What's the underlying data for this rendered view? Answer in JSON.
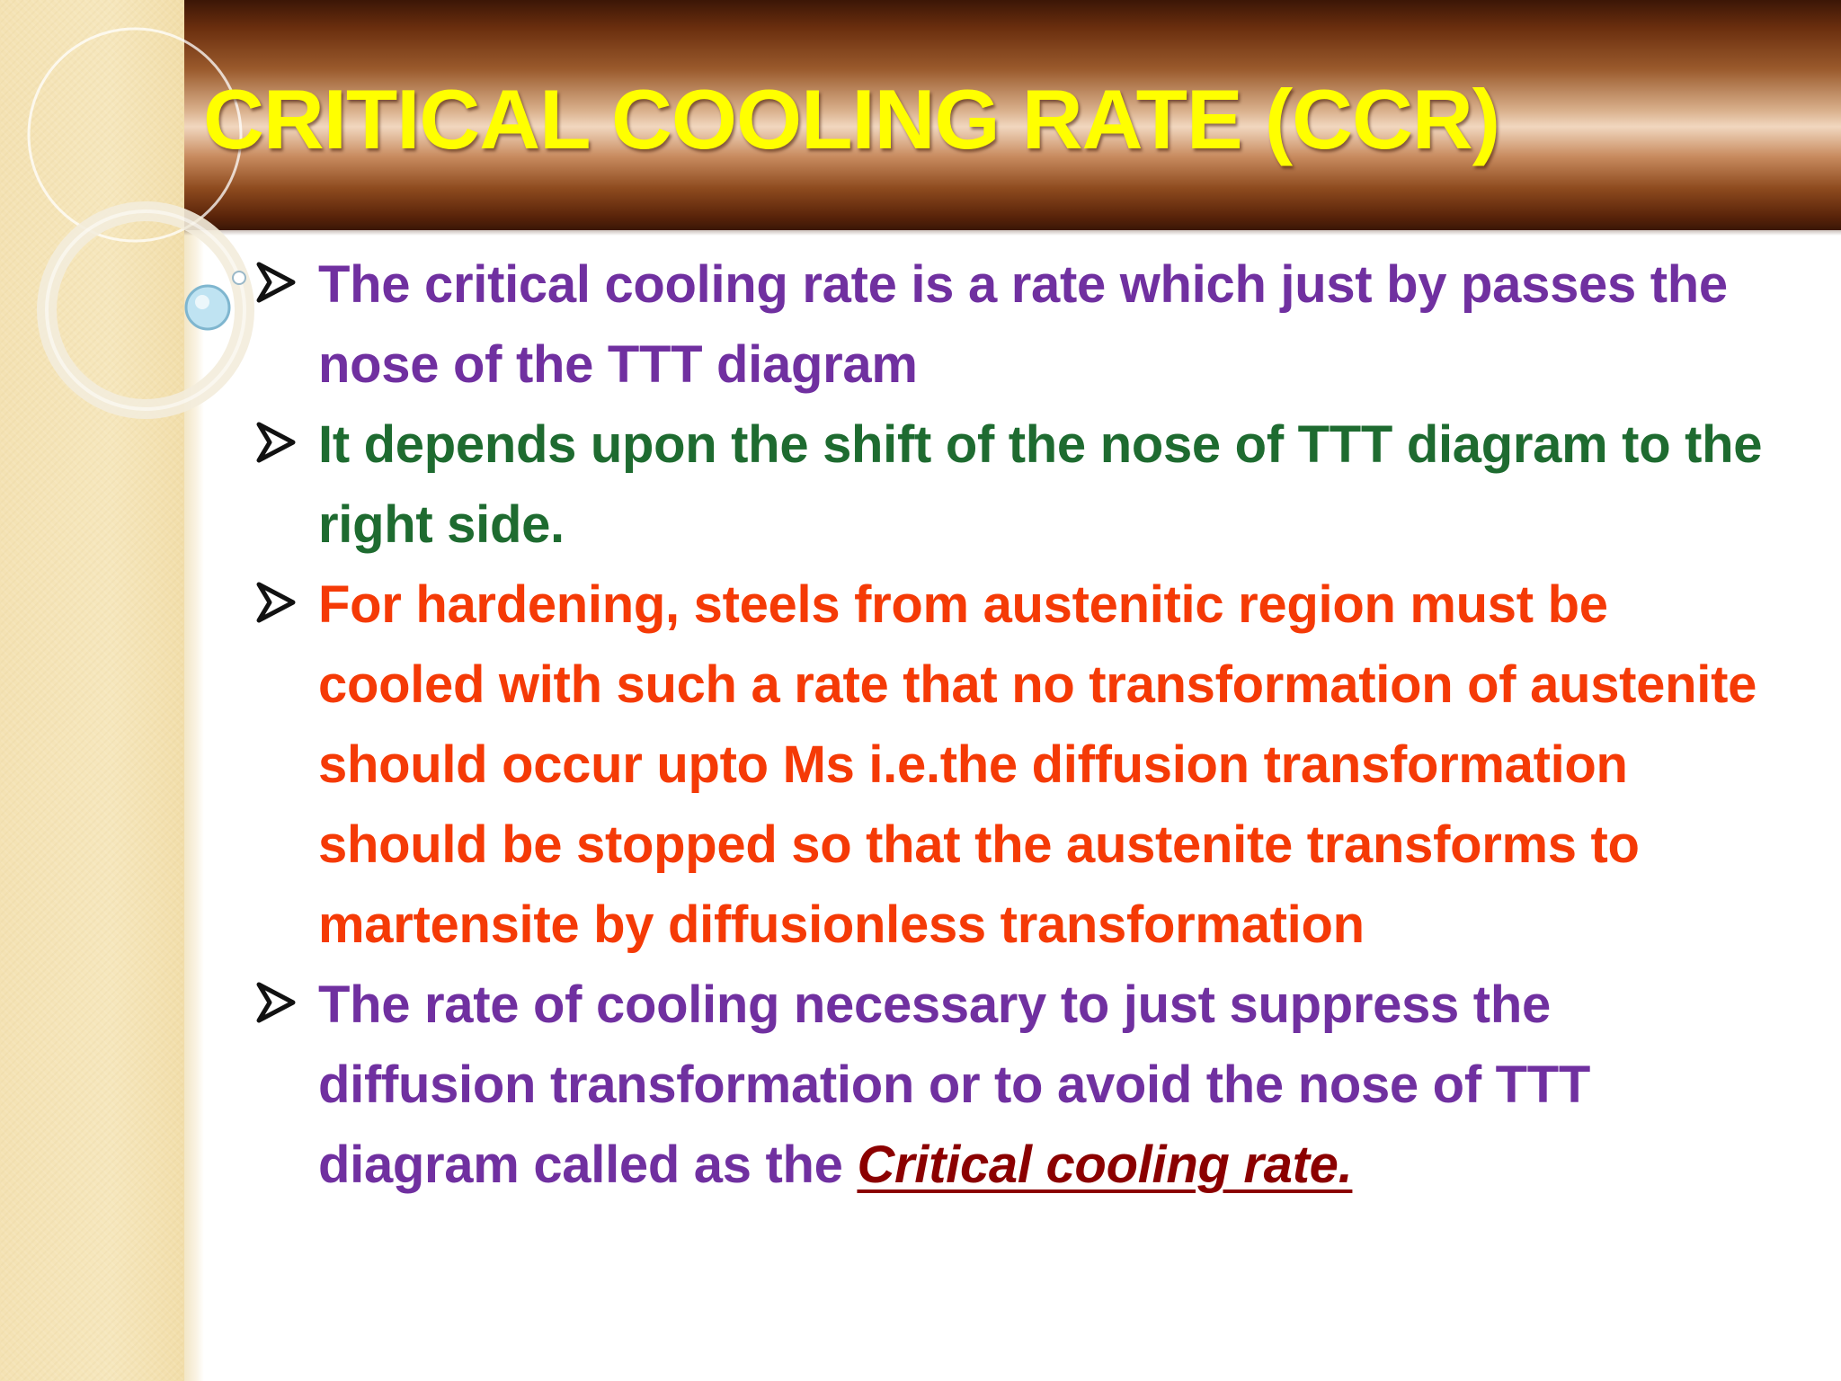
{
  "slide": {
    "title": "CRITICAL COOLING RATE (CCR)",
    "colors": {
      "title": "#ffff00",
      "purple": "#7030a0",
      "green": "#1e6b30",
      "red": "#f53a06",
      "emphasis": "#8b0000",
      "band_dark": "#5a240a",
      "band_light": "#f1d7bf",
      "strip": "#f4e2b3"
    },
    "bullet_icon": "arrow-bullet-icon",
    "bullets": [
      {
        "color": "purple",
        "text": "The critical cooling rate is a rate which just by passes the nose of the TTT diagram"
      },
      {
        "color": "green",
        "text": "It depends upon the shift of the nose of TTT diagram to the right side."
      },
      {
        "color": "red",
        "text": "For hardening, steels from austenitic region must be cooled with such a rate that no transformation of austenite should occur upto  Ms i.e.the diffusion transformation should be stopped so that the austenite transforms to martensite by diffusionless transformation"
      },
      {
        "color": "purple",
        "text": "The rate of cooling necessary to just suppress the diffusion transformation or to avoid the nose of TTT diagram called as the ",
        "emphasis": "Critical cooling rate."
      }
    ]
  }
}
